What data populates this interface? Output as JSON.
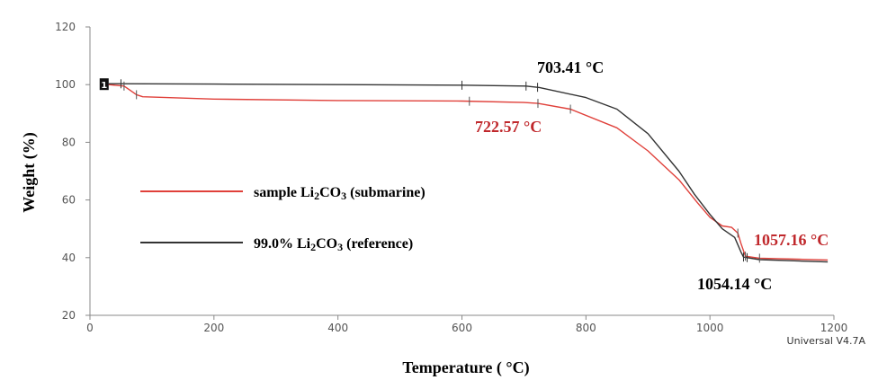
{
  "chart_data": {
    "type": "line",
    "xlabel": "Temperature ( °C)",
    "ylabel": "Weight (%)",
    "xlim": [
      0,
      1200
    ],
    "ylim": [
      20,
      120
    ],
    "xticks": [
      "0",
      "200",
      "400",
      "600",
      "800",
      "1000",
      "1200"
    ],
    "yticks": [
      "20",
      "40",
      "60",
      "80",
      "100",
      "120"
    ],
    "grid": false,
    "legend_position": "left-middle",
    "series": [
      {
        "name_prefix": "sample Li",
        "name_sub1": "2",
        "name_mid": "CO",
        "name_sub2": "3",
        "name_suffix": " (submarine)",
        "color": "#e0403a",
        "x": [
          30,
          55,
          65,
          75,
          85,
          200,
          400,
          600,
          700,
          722.57,
          775,
          850,
          900,
          950,
          980,
          1000,
          1020,
          1035,
          1045,
          1050,
          1057.16,
          1080,
          1150,
          1190
        ],
        "y": [
          100,
          99.5,
          98,
          96.5,
          95.8,
          95,
          94.5,
          94.3,
          93.8,
          93.5,
          91.5,
          85,
          77,
          67,
          59,
          54,
          51,
          50.5,
          48.5,
          45,
          40.5,
          39.8,
          39.4,
          39.2
        ]
      },
      {
        "name_prefix": "99.0% Li",
        "name_sub1": "2",
        "name_mid": "CO",
        "name_sub2": "3",
        "name_suffix": " (reference)",
        "color": "#333333",
        "x": [
          30,
          200,
          400,
          600,
          703.41,
          725,
          800,
          850,
          900,
          950,
          975,
          1000,
          1020,
          1040,
          1050,
          1054.14,
          1080,
          1150,
          1190
        ],
        "y": [
          100.3,
          100.2,
          100,
          99.8,
          99.5,
          99,
          95.5,
          91.5,
          83,
          70,
          62,
          55,
          50,
          47,
          42,
          40.2,
          39.3,
          38.8,
          38.5
        ]
      }
    ],
    "annotations": [
      {
        "text": "703.41 °C",
        "x": 703.41,
        "y": 99.5,
        "color": "#000000"
      },
      {
        "text": "722.57 °C",
        "x": 722.57,
        "y": 93.5,
        "color": "#c0282c"
      },
      {
        "text": "1057.16 °C",
        "x": 1057.16,
        "y": 40.5,
        "color": "#c0282c"
      },
      {
        "text": "1054.14 °C",
        "x": 1054.14,
        "y": 40.2,
        "color": "#000000"
      }
    ],
    "start_marker": "1",
    "footer_text": "Universal V4.7A"
  }
}
